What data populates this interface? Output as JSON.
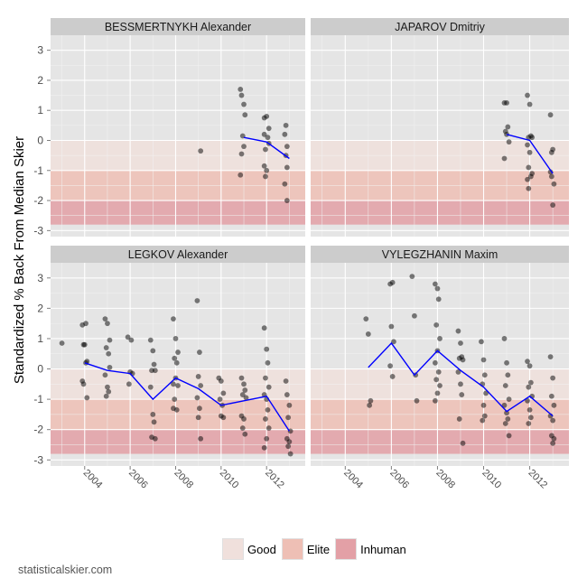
{
  "chart_data": {
    "type": "scatter",
    "ylabel": "Standardized % Back From Median Skier",
    "ylim": [
      -3.2,
      3.5
    ],
    "yticks": [
      3,
      2,
      1,
      0,
      -1,
      -2,
      -3
    ],
    "xlim": [
      2002.5,
      2013.7
    ],
    "xticks": [
      2004,
      2006,
      2008,
      2010,
      2012
    ],
    "bands": [
      {
        "name": "Good",
        "y0": -1,
        "y1": 0,
        "color": "#f0e0dc"
      },
      {
        "name": "Elite",
        "y0": -2,
        "y1": -1,
        "color": "#eebfb5"
      },
      {
        "name": "Inhuman",
        "y0": -2.8,
        "y1": -2,
        "color": "#e3a0a6"
      }
    ],
    "panels": [
      {
        "name": "BESSMERTNYKH Alexander",
        "points": [
          [
            2009.1,
            -0.35
          ],
          [
            2010.85,
            1.7
          ],
          [
            2010.9,
            1.5
          ],
          [
            2011,
            1.2
          ],
          [
            2011.05,
            0.85
          ],
          [
            2010.95,
            0.15
          ],
          [
            2011,
            -0.2
          ],
          [
            2010.9,
            -0.45
          ],
          [
            2010.85,
            -1.15
          ],
          [
            2011.9,
            0.75
          ],
          [
            2012,
            0.8
          ],
          [
            2012.1,
            0.4
          ],
          [
            2011.9,
            0.2
          ],
          [
            2012.05,
            0.1
          ],
          [
            2012.1,
            -0.1
          ],
          [
            2011.95,
            -0.3
          ],
          [
            2011.9,
            -0.85
          ],
          [
            2012,
            -1
          ],
          [
            2011.95,
            -1.2
          ],
          [
            2012.85,
            0.5
          ],
          [
            2012.8,
            0.2
          ],
          [
            2012.9,
            -0.2
          ],
          [
            2012.85,
            -0.5
          ],
          [
            2012.9,
            -0.9
          ],
          [
            2012.8,
            -1.45
          ],
          [
            2012.9,
            -2
          ]
        ],
        "line": [
          [
            2011,
            0.1
          ],
          [
            2012,
            -0.05
          ],
          [
            2013,
            -0.6
          ]
        ]
      },
      {
        "name": "JAPAROV Dmitriy",
        "points": [
          [
            2010.9,
            1.25
          ],
          [
            2011,
            1.25
          ],
          [
            2011.05,
            0.45
          ],
          [
            2010.95,
            0.3
          ],
          [
            2011,
            0.2
          ],
          [
            2011.1,
            -0.05
          ],
          [
            2010.9,
            -0.6
          ],
          [
            2011.9,
            1.5
          ],
          [
            2012,
            1.2
          ],
          [
            2012.05,
            0.15
          ],
          [
            2011.95,
            0.1
          ],
          [
            2012.1,
            0.1
          ],
          [
            2011.9,
            -0.15
          ],
          [
            2012,
            -0.4
          ],
          [
            2011.95,
            -0.9
          ],
          [
            2011.9,
            -1.3
          ],
          [
            2011.95,
            -1.6
          ],
          [
            2012.1,
            -1.1
          ],
          [
            2012.05,
            -1.2
          ],
          [
            2012.9,
            0.85
          ],
          [
            2013,
            -0.3
          ],
          [
            2012.95,
            -0.4
          ],
          [
            2012.9,
            -1.05
          ],
          [
            2012.95,
            -1.2
          ],
          [
            2013.05,
            -1.45
          ],
          [
            2013,
            -2.15
          ]
        ],
        "line": [
          [
            2011,
            0.2
          ],
          [
            2012,
            0
          ],
          [
            2013,
            -1.1
          ]
        ]
      },
      {
        "name": "LEGKOV Alexander",
        "points": [
          [
            2003,
            0.85
          ],
          [
            2003.9,
            1.45
          ],
          [
            2004.05,
            1.5
          ],
          [
            2003.95,
            0.8
          ],
          [
            2004,
            0.8
          ],
          [
            2004.1,
            0.25
          ],
          [
            2004.05,
            0.2
          ],
          [
            2003.9,
            -0.4
          ],
          [
            2003.95,
            -0.5
          ],
          [
            2004.1,
            -0.95
          ],
          [
            2004.9,
            1.65
          ],
          [
            2005,
            1.5
          ],
          [
            2005.1,
            0.95
          ],
          [
            2004.95,
            0.7
          ],
          [
            2005.05,
            0.5
          ],
          [
            2005.1,
            0.05
          ],
          [
            2004.9,
            -0.2
          ],
          [
            2005,
            -0.6
          ],
          [
            2005.05,
            -0.75
          ],
          [
            2004.95,
            -0.9
          ],
          [
            2005.9,
            1.05
          ],
          [
            2006.05,
            0.95
          ],
          [
            2006,
            -0.1
          ],
          [
            2006.1,
            -0.15
          ],
          [
            2005.95,
            -0.5
          ],
          [
            2006.9,
            0.95
          ],
          [
            2007,
            0.6
          ],
          [
            2007.05,
            0.15
          ],
          [
            2006.95,
            -0.05
          ],
          [
            2007.1,
            -0.05
          ],
          [
            2006.9,
            -0.6
          ],
          [
            2007,
            -1.5
          ],
          [
            2007.05,
            -1.75
          ],
          [
            2006.95,
            -2.25
          ],
          [
            2007.1,
            -2.3
          ],
          [
            2007.9,
            1.65
          ],
          [
            2008,
            1
          ],
          [
            2008.1,
            0.55
          ],
          [
            2007.95,
            0.35
          ],
          [
            2008.05,
            0.2
          ],
          [
            2008,
            -0.3
          ],
          [
            2007.9,
            -0.5
          ],
          [
            2008.1,
            -0.55
          ],
          [
            2007.95,
            -1
          ],
          [
            2007.9,
            -1.3
          ],
          [
            2008.05,
            -1.35
          ],
          [
            2008.95,
            2.25
          ],
          [
            2009.05,
            0.55
          ],
          [
            2009,
            -0.25
          ],
          [
            2009.1,
            -0.55
          ],
          [
            2008.95,
            -0.95
          ],
          [
            2009.05,
            -1.3
          ],
          [
            2009,
            -1.6
          ],
          [
            2009.1,
            -2.3
          ],
          [
            2009.9,
            -0.3
          ],
          [
            2010,
            -0.4
          ],
          [
            2010.1,
            -0.8
          ],
          [
            2009.95,
            -1
          ],
          [
            2010.05,
            -1.2
          ],
          [
            2010,
            -1.55
          ],
          [
            2010.1,
            -1.6
          ],
          [
            2010.9,
            -0.3
          ],
          [
            2011,
            -0.5
          ],
          [
            2011.05,
            -0.7
          ],
          [
            2010.95,
            -0.85
          ],
          [
            2011.1,
            -0.95
          ],
          [
            2010.9,
            -1.55
          ],
          [
            2011,
            -1.65
          ],
          [
            2010.95,
            -1.95
          ],
          [
            2011.05,
            -2.15
          ],
          [
            2011.9,
            1.35
          ],
          [
            2012,
            0.65
          ],
          [
            2012.05,
            0.2
          ],
          [
            2011.95,
            -0.3
          ],
          [
            2012.1,
            -0.6
          ],
          [
            2011.9,
            -0.85
          ],
          [
            2012,
            -1
          ],
          [
            2012.05,
            -1.35
          ],
          [
            2011.95,
            -1.65
          ],
          [
            2012.1,
            -1.95
          ],
          [
            2012,
            -2.3
          ],
          [
            2011.9,
            -2.6
          ],
          [
            2012.85,
            -0.4
          ],
          [
            2012.9,
            -0.85
          ],
          [
            2013,
            -1.2
          ],
          [
            2012.95,
            -1.6
          ],
          [
            2013.05,
            -2.05
          ],
          [
            2012.9,
            -2.3
          ],
          [
            2013,
            -2.4
          ],
          [
            2012.95,
            -2.55
          ],
          [
            2013.05,
            -2.8
          ]
        ],
        "line": [
          [
            2004,
            0.2
          ],
          [
            2005,
            -0.05
          ],
          [
            2006,
            -0.15
          ],
          [
            2007,
            -1
          ],
          [
            2008,
            -0.3
          ],
          [
            2009,
            -0.65
          ],
          [
            2010,
            -1.2
          ],
          [
            2011,
            -1.05
          ],
          [
            2012,
            -0.9
          ],
          [
            2013,
            -2.05
          ]
        ]
      },
      {
        "name": "VYLEGZHANIN Maxim",
        "points": [
          [
            2004.9,
            1.65
          ],
          [
            2005,
            1.15
          ],
          [
            2005.1,
            -1.05
          ],
          [
            2005.05,
            -1.2
          ],
          [
            2005.95,
            2.8
          ],
          [
            2006.05,
            2.85
          ],
          [
            2006,
            1.4
          ],
          [
            2006.1,
            0.9
          ],
          [
            2005.95,
            0.1
          ],
          [
            2006.05,
            -0.25
          ],
          [
            2006.9,
            3.05
          ],
          [
            2007,
            1.75
          ],
          [
            2007.05,
            -0.2
          ],
          [
            2007.1,
            -1.05
          ],
          [
            2007.9,
            2.8
          ],
          [
            2008,
            2.65
          ],
          [
            2008.05,
            2.3
          ],
          [
            2007.95,
            1.45
          ],
          [
            2008.1,
            1
          ],
          [
            2008,
            0.6
          ],
          [
            2007.9,
            0.2
          ],
          [
            2008.05,
            -0.1
          ],
          [
            2007.95,
            -0.35
          ],
          [
            2008.1,
            -0.55
          ],
          [
            2008,
            -0.8
          ],
          [
            2007.9,
            -1.05
          ],
          [
            2008.9,
            1.25
          ],
          [
            2009,
            0.85
          ],
          [
            2009.05,
            0.4
          ],
          [
            2008.95,
            0.35
          ],
          [
            2009.1,
            0.3
          ],
          [
            2008.9,
            -0.1
          ],
          [
            2009,
            -0.5
          ],
          [
            2009.05,
            -0.85
          ],
          [
            2008.95,
            -1.65
          ],
          [
            2009.1,
            -2.45
          ],
          [
            2009.9,
            0.9
          ],
          [
            2010,
            0.3
          ],
          [
            2010.05,
            -0.2
          ],
          [
            2009.95,
            -0.5
          ],
          [
            2010.1,
            -0.8
          ],
          [
            2010,
            -1.2
          ],
          [
            2010.05,
            -1.55
          ],
          [
            2009.95,
            -1.7
          ],
          [
            2010.9,
            1
          ],
          [
            2011,
            0.2
          ],
          [
            2011.05,
            -0.2
          ],
          [
            2010.95,
            -0.55
          ],
          [
            2011.1,
            -1
          ],
          [
            2010.9,
            -1.2
          ],
          [
            2011,
            -1.45
          ],
          [
            2011.05,
            -1.65
          ],
          [
            2010.95,
            -1.8
          ],
          [
            2011.1,
            -2.2
          ],
          [
            2011.9,
            0.25
          ],
          [
            2012,
            0.1
          ],
          [
            2012.05,
            -0.45
          ],
          [
            2011.95,
            -0.6
          ],
          [
            2012.1,
            -0.9
          ],
          [
            2011.9,
            -1.05
          ],
          [
            2012,
            -1.35
          ],
          [
            2012.05,
            -1.6
          ],
          [
            2011.95,
            -1.8
          ],
          [
            2012.9,
            0.4
          ],
          [
            2013,
            -0.3
          ],
          [
            2012.95,
            -0.9
          ],
          [
            2013.05,
            -1.2
          ],
          [
            2012.9,
            -1.55
          ],
          [
            2013,
            -1.7
          ],
          [
            2012.95,
            -2.2
          ],
          [
            2013.05,
            -2.3
          ],
          [
            2013,
            -2.45
          ]
        ],
        "line": [
          [
            2005,
            0.05
          ],
          [
            2006,
            0.85
          ],
          [
            2007,
            -0.2
          ],
          [
            2008,
            0.6
          ],
          [
            2009,
            -0.05
          ],
          [
            2010,
            -0.6
          ],
          [
            2011,
            -1.4
          ],
          [
            2012,
            -0.9
          ],
          [
            2013,
            -1.55
          ]
        ]
      }
    ]
  },
  "legend": [
    {
      "label": "Good",
      "color": "#f0e0dc"
    },
    {
      "label": "Elite",
      "color": "#eebfb5"
    },
    {
      "label": "Inhuman",
      "color": "#e3a0a6"
    }
  ],
  "credit": "statisticalskier.com"
}
